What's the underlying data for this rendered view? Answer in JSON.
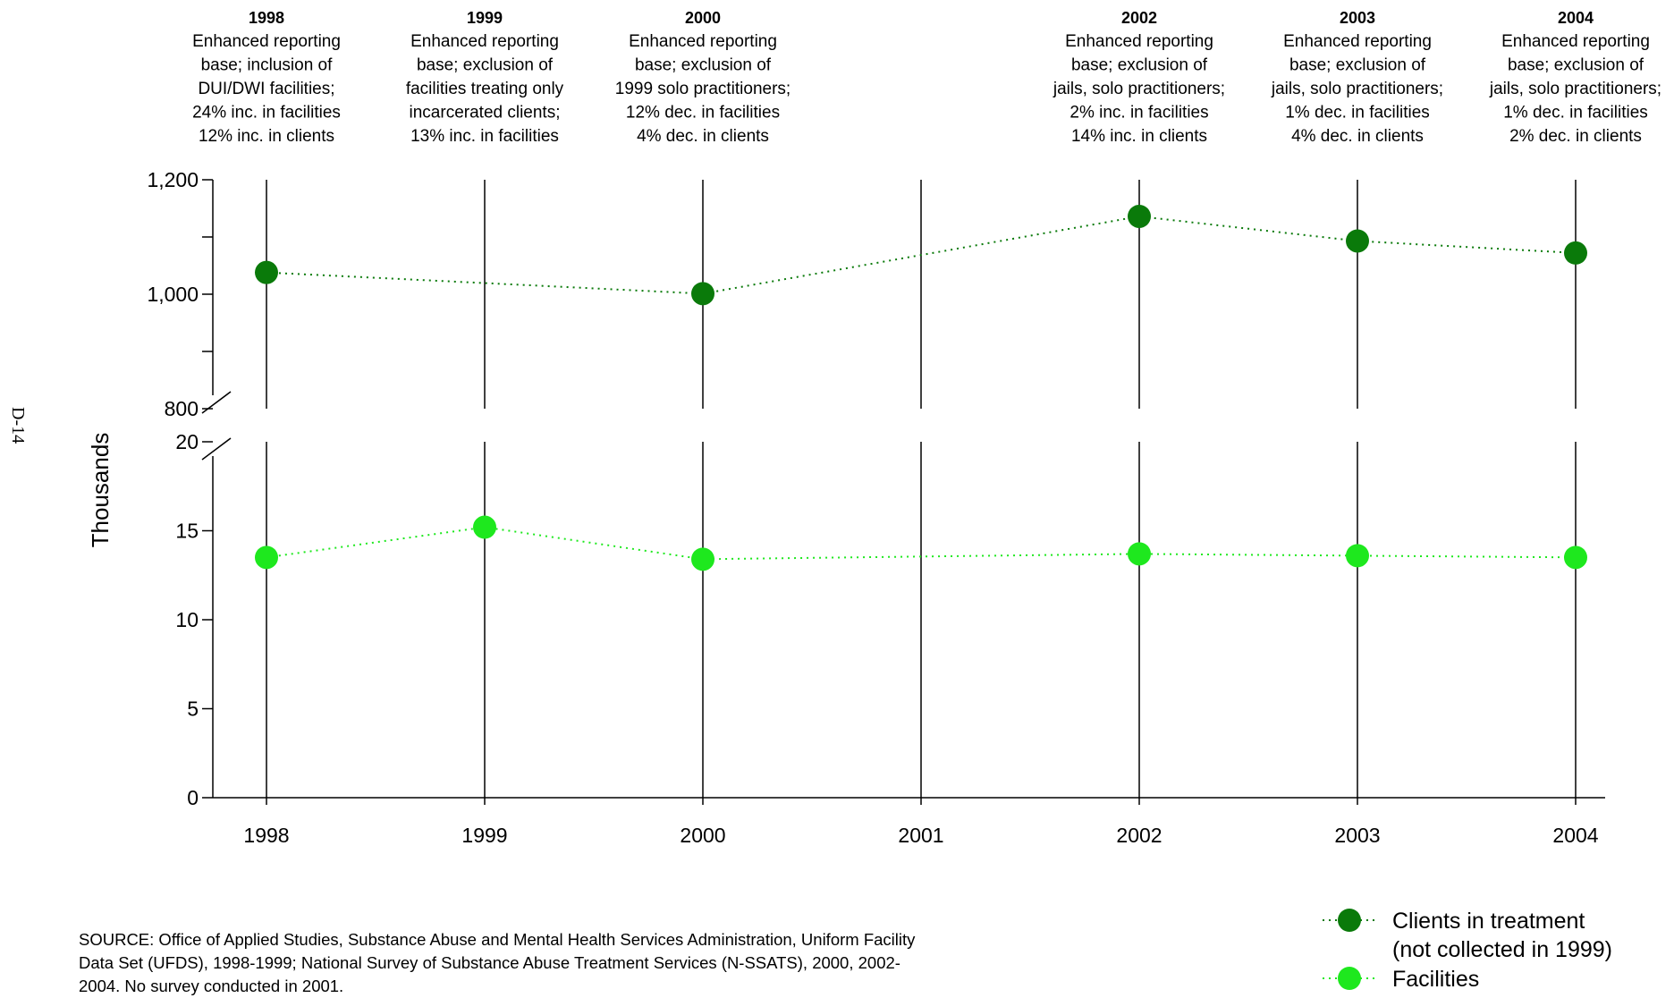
{
  "page_number": "D-14",
  "source_note": "SOURCE: Office of Applied Studies, Substance Abuse and Mental Health Services Administration, Uniform Facility Data Set (UFDS), 1998-1999; National Survey of Substance Abuse Treatment Services (N-SSATS), 2000, 2002-2004. No survey conducted in 2001.",
  "colors": {
    "clients": "#0a7a0a",
    "facilities": "#1ee81e",
    "axis": "#000000"
  },
  "chart_data": {
    "type": "line",
    "title": "",
    "xlabel": "",
    "ylabel": "Thousands",
    "x": [
      "1998",
      "1999",
      "2000",
      "2001",
      "2002",
      "2003",
      "2004"
    ],
    "y_axis_upper": {
      "ylim": [
        800,
        1200
      ],
      "ticks": [
        800,
        1000,
        1200
      ],
      "tick_labels": [
        "800",
        "1,000",
        "1,200"
      ]
    },
    "y_axis_lower": {
      "ylim": [
        0,
        20
      ],
      "ticks": [
        0,
        5,
        10,
        15,
        20
      ],
      "tick_labels": [
        "0",
        "5",
        "10",
        "15",
        "20"
      ]
    },
    "axis_break": true,
    "series": [
      {
        "name": "Clients in treatment",
        "legend_label_line1": "Clients in treatment",
        "legend_label_line2": "(not collected in 1999)",
        "axis": "upper",
        "color": "#0a7a0a",
        "values": [
          1038,
          null,
          1001,
          null,
          1136,
          1093,
          1072
        ]
      },
      {
        "name": "Facilities",
        "legend_label_line1": "Facilities",
        "axis": "lower",
        "color": "#1ee81e",
        "values": [
          13.5,
          15.2,
          13.4,
          null,
          13.7,
          13.6,
          13.5
        ]
      }
    ],
    "legend_position": "bottom-right",
    "annotations": [
      {
        "year": "1998",
        "lines": [
          "Enhanced reporting",
          "base; inclusion of",
          "DUI/DWI facilities;",
          "24% inc. in facilities",
          "12% inc. in clients"
        ]
      },
      {
        "year": "1999",
        "lines": [
          "Enhanced reporting",
          "base; exclusion of",
          "facilities treating only",
          "incarcerated clients;",
          "13% inc. in facilities"
        ]
      },
      {
        "year": "2000",
        "lines": [
          "Enhanced reporting",
          "base; exclusion of",
          "1999 solo practitioners;",
          "12% dec. in facilities",
          "4% dec. in clients"
        ]
      },
      {
        "year": "2002",
        "lines": [
          "Enhanced reporting",
          "base; exclusion of",
          "jails, solo practitioners;",
          "2% inc. in facilities",
          "14% inc. in clients"
        ]
      },
      {
        "year": "2003",
        "lines": [
          "Enhanced reporting",
          "base; exclusion of",
          "jails, solo practitioners;",
          "1% dec. in facilities",
          "4% dec. in clients"
        ]
      },
      {
        "year": "2004",
        "lines": [
          "Enhanced reporting",
          "base; exclusion of",
          "jails, solo practitioners;",
          "1% dec. in facilities",
          "2% dec. in clients"
        ]
      }
    ]
  }
}
